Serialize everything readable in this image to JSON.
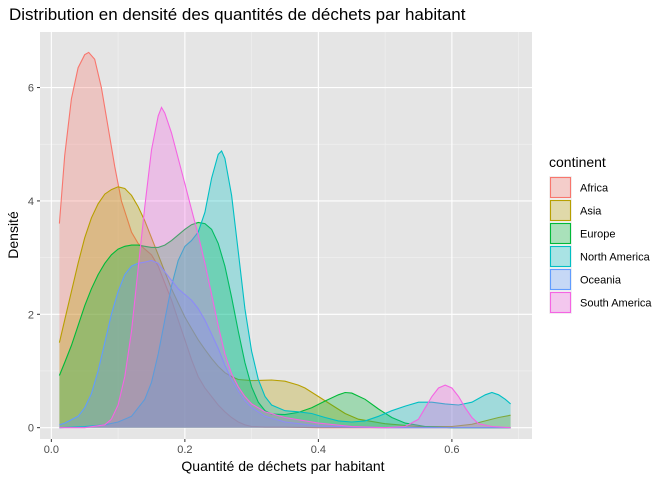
{
  "chart_data": {
    "type": "area",
    "title": "Distribution en densité des quantités de déchets par habitant",
    "xlabel": "Quantité de déchets par habitant",
    "ylabel": "Densité",
    "xlim": [
      -0.017,
      0.72
    ],
    "ylim": [
      -0.2,
      6.98
    ],
    "x_ticks": [
      0.0,
      0.2,
      0.4,
      0.6
    ],
    "x_tick_labels": [
      "0.0",
      "0.2",
      "0.4",
      "0.6"
    ],
    "y_ticks": [
      0,
      2,
      4,
      6
    ],
    "y_tick_labels": [
      "0",
      "2",
      "4",
      "6"
    ],
    "grid": true,
    "background": "#e5e5e5",
    "legend": {
      "title": "continent",
      "placement": "right"
    },
    "fill_opacity": 0.3,
    "series": [
      {
        "name": "Africa",
        "color": "#F8766D",
        "points": [
          [
            0.012,
            3.6
          ],
          [
            0.02,
            4.8
          ],
          [
            0.03,
            5.8
          ],
          [
            0.04,
            6.35
          ],
          [
            0.05,
            6.58
          ],
          [
            0.056,
            6.62
          ],
          [
            0.065,
            6.5
          ],
          [
            0.075,
            6.0
          ],
          [
            0.085,
            5.3
          ],
          [
            0.095,
            4.6
          ],
          [
            0.105,
            4.0
          ],
          [
            0.12,
            3.45
          ],
          [
            0.13,
            3.25
          ],
          [
            0.14,
            3.15
          ],
          [
            0.15,
            3.05
          ],
          [
            0.16,
            2.85
          ],
          [
            0.17,
            2.55
          ],
          [
            0.18,
            2.25
          ],
          [
            0.19,
            1.9
          ],
          [
            0.2,
            1.55
          ],
          [
            0.21,
            1.2
          ],
          [
            0.22,
            0.9
          ],
          [
            0.23,
            0.7
          ],
          [
            0.24,
            0.55
          ],
          [
            0.25,
            0.4
          ],
          [
            0.26,
            0.28
          ],
          [
            0.27,
            0.18
          ],
          [
            0.28,
            0.1
          ],
          [
            0.29,
            0.05
          ],
          [
            0.3,
            0.02
          ],
          [
            0.32,
            0.01
          ],
          [
            0.35,
            0.01
          ],
          [
            0.4,
            0.0
          ],
          [
            0.5,
            0.0
          ],
          [
            0.6,
            0.0
          ],
          [
            0.688,
            0.0
          ]
        ]
      },
      {
        "name": "Asia",
        "color": "#B79F00",
        "points": [
          [
            0.012,
            1.5
          ],
          [
            0.02,
            1.9
          ],
          [
            0.03,
            2.4
          ],
          [
            0.04,
            2.9
          ],
          [
            0.05,
            3.35
          ],
          [
            0.06,
            3.7
          ],
          [
            0.07,
            3.95
          ],
          [
            0.08,
            4.12
          ],
          [
            0.09,
            4.2
          ],
          [
            0.1,
            4.25
          ],
          [
            0.11,
            4.22
          ],
          [
            0.12,
            4.1
          ],
          [
            0.13,
            3.9
          ],
          [
            0.14,
            3.65
          ],
          [
            0.15,
            3.35
          ],
          [
            0.16,
            3.05
          ],
          [
            0.17,
            2.75
          ],
          [
            0.18,
            2.45
          ],
          [
            0.19,
            2.2
          ],
          [
            0.2,
            1.95
          ],
          [
            0.21,
            1.75
          ],
          [
            0.22,
            1.55
          ],
          [
            0.23,
            1.38
          ],
          [
            0.24,
            1.22
          ],
          [
            0.25,
            1.08
          ],
          [
            0.26,
            0.97
          ],
          [
            0.27,
            0.9
          ],
          [
            0.28,
            0.85
          ],
          [
            0.3,
            0.83
          ],
          [
            0.33,
            0.84
          ],
          [
            0.35,
            0.82
          ],
          [
            0.37,
            0.75
          ],
          [
            0.38,
            0.7
          ],
          [
            0.4,
            0.55
          ],
          [
            0.42,
            0.4
          ],
          [
            0.44,
            0.25
          ],
          [
            0.46,
            0.15
          ],
          [
            0.5,
            0.07
          ],
          [
            0.55,
            0.02
          ],
          [
            0.6,
            0.02
          ],
          [
            0.63,
            0.06
          ],
          [
            0.65,
            0.12
          ],
          [
            0.67,
            0.18
          ],
          [
            0.688,
            0.22
          ]
        ]
      },
      {
        "name": "Europe",
        "color": "#00BA38",
        "points": [
          [
            0.012,
            0.92
          ],
          [
            0.02,
            1.15
          ],
          [
            0.03,
            1.45
          ],
          [
            0.04,
            1.8
          ],
          [
            0.05,
            2.15
          ],
          [
            0.06,
            2.45
          ],
          [
            0.07,
            2.7
          ],
          [
            0.08,
            2.9
          ],
          [
            0.09,
            3.05
          ],
          [
            0.1,
            3.15
          ],
          [
            0.11,
            3.2
          ],
          [
            0.12,
            3.22
          ],
          [
            0.13,
            3.22
          ],
          [
            0.14,
            3.2
          ],
          [
            0.15,
            3.18
          ],
          [
            0.16,
            3.18
          ],
          [
            0.17,
            3.22
          ],
          [
            0.18,
            3.3
          ],
          [
            0.19,
            3.4
          ],
          [
            0.2,
            3.5
          ],
          [
            0.21,
            3.58
          ],
          [
            0.22,
            3.62
          ],
          [
            0.23,
            3.6
          ],
          [
            0.24,
            3.5
          ],
          [
            0.25,
            3.25
          ],
          [
            0.26,
            2.85
          ],
          [
            0.27,
            2.3
          ],
          [
            0.28,
            1.7
          ],
          [
            0.29,
            1.15
          ],
          [
            0.3,
            0.72
          ],
          [
            0.31,
            0.45
          ],
          [
            0.32,
            0.3
          ],
          [
            0.33,
            0.24
          ],
          [
            0.35,
            0.23
          ],
          [
            0.37,
            0.27
          ],
          [
            0.39,
            0.35
          ],
          [
            0.41,
            0.47
          ],
          [
            0.43,
            0.58
          ],
          [
            0.44,
            0.62
          ],
          [
            0.45,
            0.61
          ],
          [
            0.47,
            0.5
          ],
          [
            0.49,
            0.33
          ],
          [
            0.51,
            0.18
          ],
          [
            0.53,
            0.08
          ],
          [
            0.56,
            0.02
          ],
          [
            0.6,
            0.0
          ],
          [
            0.65,
            0.0
          ],
          [
            0.688,
            0.0
          ]
        ]
      },
      {
        "name": "North America",
        "color": "#00BFC4",
        "points": [
          [
            0.012,
            0.0
          ],
          [
            0.05,
            0.02
          ],
          [
            0.08,
            0.05
          ],
          [
            0.1,
            0.1
          ],
          [
            0.12,
            0.2
          ],
          [
            0.14,
            0.5
          ],
          [
            0.15,
            0.8
          ],
          [
            0.16,
            1.3
          ],
          [
            0.17,
            1.9
          ],
          [
            0.18,
            2.5
          ],
          [
            0.19,
            2.95
          ],
          [
            0.2,
            3.2
          ],
          [
            0.21,
            3.3
          ],
          [
            0.22,
            3.45
          ],
          [
            0.23,
            3.8
          ],
          [
            0.24,
            4.4
          ],
          [
            0.25,
            4.82
          ],
          [
            0.255,
            4.88
          ],
          [
            0.26,
            4.75
          ],
          [
            0.27,
            4.1
          ],
          [
            0.28,
            3.1
          ],
          [
            0.29,
            2.1
          ],
          [
            0.3,
            1.35
          ],
          [
            0.31,
            0.85
          ],
          [
            0.32,
            0.55
          ],
          [
            0.33,
            0.4
          ],
          [
            0.35,
            0.3
          ],
          [
            0.37,
            0.28
          ],
          [
            0.39,
            0.25
          ],
          [
            0.41,
            0.18
          ],
          [
            0.43,
            0.12
          ],
          [
            0.45,
            0.1
          ],
          [
            0.47,
            0.12
          ],
          [
            0.49,
            0.2
          ],
          [
            0.51,
            0.3
          ],
          [
            0.53,
            0.38
          ],
          [
            0.55,
            0.45
          ],
          [
            0.57,
            0.45
          ],
          [
            0.59,
            0.42
          ],
          [
            0.61,
            0.4
          ],
          [
            0.63,
            0.45
          ],
          [
            0.65,
            0.58
          ],
          [
            0.66,
            0.62
          ],
          [
            0.67,
            0.58
          ],
          [
            0.68,
            0.5
          ],
          [
            0.688,
            0.42
          ]
        ]
      },
      {
        "name": "Oceania",
        "color": "#619CFF",
        "points": [
          [
            0.012,
            0.05
          ],
          [
            0.02,
            0.08
          ],
          [
            0.04,
            0.2
          ],
          [
            0.05,
            0.35
          ],
          [
            0.06,
            0.6
          ],
          [
            0.07,
            1.0
          ],
          [
            0.08,
            1.5
          ],
          [
            0.09,
            2.0
          ],
          [
            0.1,
            2.4
          ],
          [
            0.11,
            2.7
          ],
          [
            0.12,
            2.85
          ],
          [
            0.13,
            2.9
          ],
          [
            0.14,
            2.92
          ],
          [
            0.15,
            2.95
          ],
          [
            0.16,
            2.9
          ],
          [
            0.17,
            2.75
          ],
          [
            0.18,
            2.6
          ],
          [
            0.19,
            2.45
          ],
          [
            0.2,
            2.35
          ],
          [
            0.21,
            2.25
          ],
          [
            0.22,
            2.1
          ],
          [
            0.23,
            1.9
          ],
          [
            0.24,
            1.65
          ],
          [
            0.25,
            1.4
          ],
          [
            0.26,
            1.1
          ],
          [
            0.27,
            0.85
          ],
          [
            0.28,
            0.65
          ],
          [
            0.29,
            0.48
          ],
          [
            0.3,
            0.36
          ],
          [
            0.32,
            0.2
          ],
          [
            0.35,
            0.1
          ],
          [
            0.4,
            0.03
          ],
          [
            0.45,
            0.01
          ],
          [
            0.5,
            0.0
          ],
          [
            0.6,
            0.0
          ],
          [
            0.688,
            0.0
          ]
        ]
      },
      {
        "name": "South America",
        "color": "#F564E3",
        "points": [
          [
            0.012,
            0.0
          ],
          [
            0.05,
            0.0
          ],
          [
            0.08,
            0.05
          ],
          [
            0.09,
            0.15
          ],
          [
            0.1,
            0.4
          ],
          [
            0.11,
            0.9
          ],
          [
            0.12,
            1.7
          ],
          [
            0.13,
            2.8
          ],
          [
            0.14,
            3.9
          ],
          [
            0.15,
            4.9
          ],
          [
            0.16,
            5.5
          ],
          [
            0.165,
            5.65
          ],
          [
            0.17,
            5.55
          ],
          [
            0.18,
            5.2
          ],
          [
            0.19,
            4.75
          ],
          [
            0.2,
            4.3
          ],
          [
            0.21,
            3.85
          ],
          [
            0.22,
            3.4
          ],
          [
            0.23,
            2.9
          ],
          [
            0.24,
            2.35
          ],
          [
            0.25,
            1.8
          ],
          [
            0.26,
            1.3
          ],
          [
            0.27,
            0.95
          ],
          [
            0.28,
            0.72
          ],
          [
            0.29,
            0.55
          ],
          [
            0.3,
            0.42
          ],
          [
            0.32,
            0.28
          ],
          [
            0.35,
            0.18
          ],
          [
            0.4,
            0.08
          ],
          [
            0.45,
            0.02
          ],
          [
            0.5,
            0.0
          ],
          [
            0.53,
            0.02
          ],
          [
            0.55,
            0.15
          ],
          [
            0.56,
            0.35
          ],
          [
            0.57,
            0.55
          ],
          [
            0.58,
            0.7
          ],
          [
            0.59,
            0.75
          ],
          [
            0.6,
            0.7
          ],
          [
            0.61,
            0.55
          ],
          [
            0.62,
            0.35
          ],
          [
            0.63,
            0.18
          ],
          [
            0.64,
            0.07
          ],
          [
            0.66,
            0.02
          ],
          [
            0.688,
            0.0
          ]
        ]
      }
    ]
  }
}
